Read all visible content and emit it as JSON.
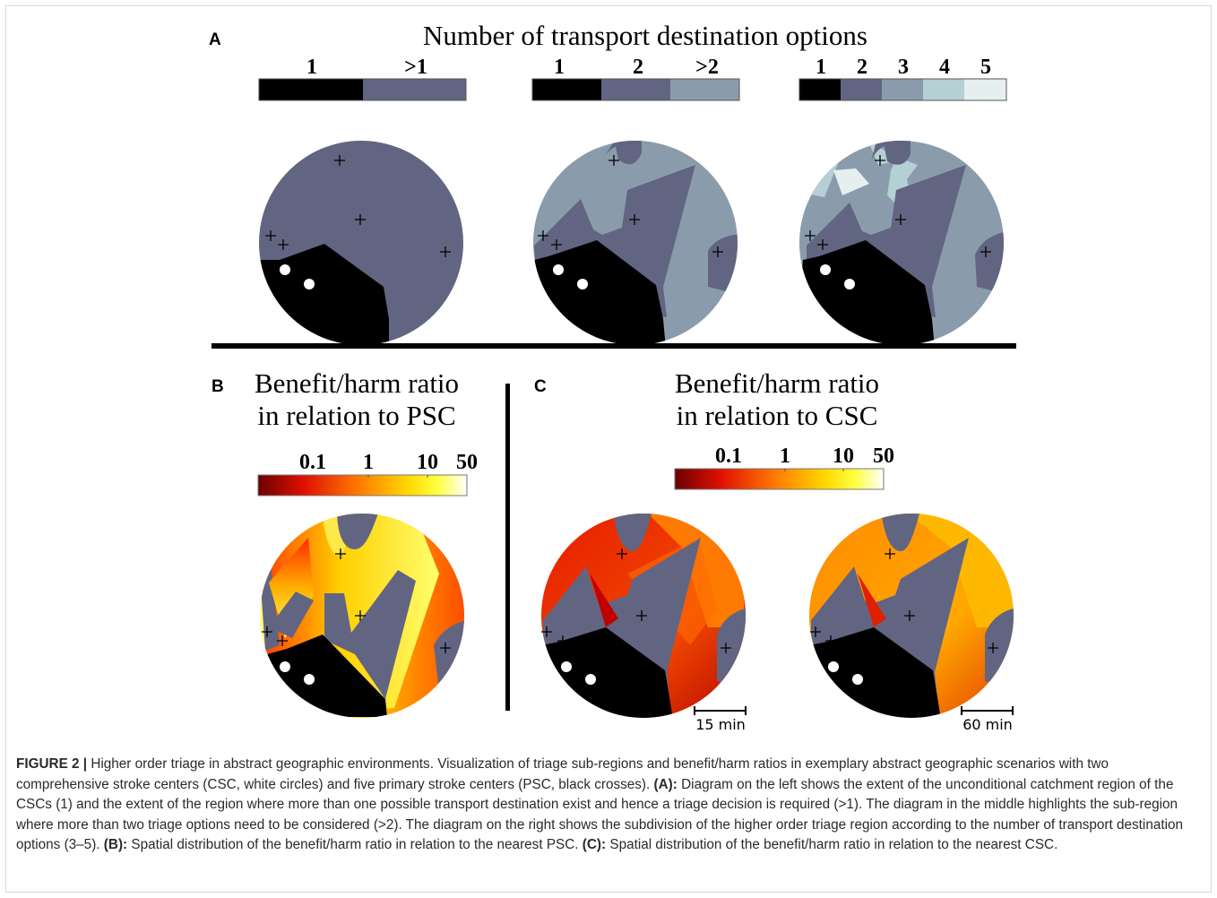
{
  "panel_a": {
    "letter": "A",
    "title": "Number of transport destination options",
    "legend1_ticks": [
      "1",
      ">1"
    ],
    "legend2_ticks": [
      "1",
      "2",
      ">2"
    ],
    "legend3_ticks": [
      "1",
      "2",
      "3",
      "4",
      "5"
    ],
    "colors": {
      "1": "#000000",
      "2": "#626582",
      "3": "#8a9cab",
      "4": "#b5d0d4",
      "5": "#e6efef"
    }
  },
  "panel_b": {
    "letter": "B",
    "title_line1": "Benefit/harm ratio",
    "title_line2": "in relation to PSC",
    "colorbar_ticks": [
      "0.1",
      "1",
      "10",
      "50"
    ]
  },
  "panel_c": {
    "letter": "C",
    "title_line1": "Benefit/harm ratio",
    "title_line2": "in relation to CSC",
    "colorbar_ticks": [
      "0.1",
      "1",
      "10",
      "50"
    ],
    "scale_left": "15 min",
    "scale_right": "60 min"
  },
  "caption": {
    "figure_label": "FIGURE 2 |",
    "intro": " Higher order triage in abstract geographic environments. Visualization of triage sub-regions and benefit/harm ratios in exemplary abstract geographic scenarios with two comprehensive stroke centers (CSC, white circles) and five primary stroke centers (PSC, black crosses). ",
    "label_a": "(A):",
    "text_a": " Diagram on the left shows the extent of the unconditional catchment region of the CSCs (1) and the extent of the region where more than one possible transport destination exist and hence a triage decision is required (>1). The diagram in the middle highlights the sub-region where more than two triage options need to be considered (>2). The diagram on the right shows the subdivision of the higher order triage region according to the number of transport destination options (3–5). ",
    "label_b": "(B):",
    "text_b": " Spatial distribution of the benefit/harm ratio in relation to the nearest PSC. ",
    "label_c": "(C):",
    "text_c": " Spatial distribution of the benefit/harm ratio in relation to the nearest CSC."
  }
}
